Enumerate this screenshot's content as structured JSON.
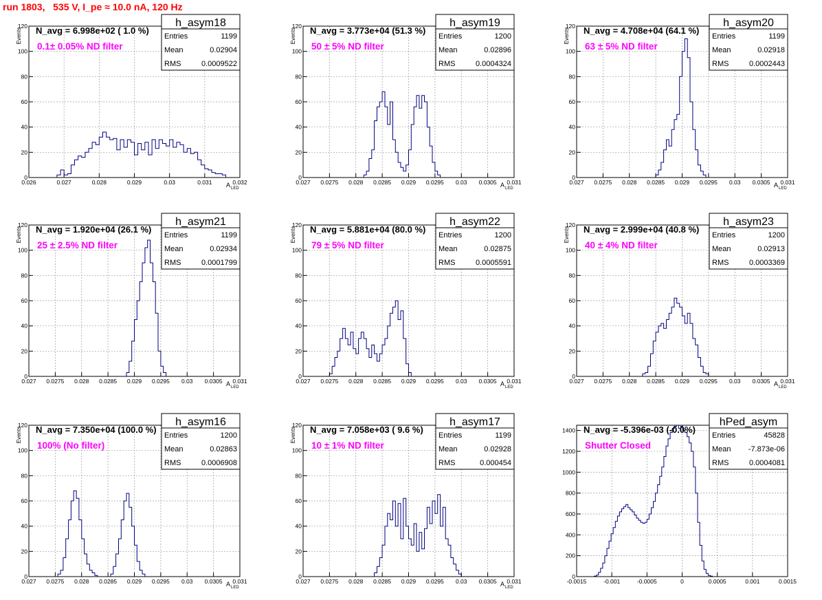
{
  "page": {
    "run_title": "run 1803,   535 V, I_pe ≈ 10.0 nA, 120 Hz",
    "colors": {
      "histogram": "#000080",
      "filter_label": "#ff00ff",
      "run_title": "#ff0000",
      "grid": "#9a9a9a"
    }
  },
  "chart_data": [
    {
      "type": "histogram",
      "name": "h_asym18",
      "navg": "N_avg = 6.998e+02 ( 1.0 %)",
      "filter": "0.1± 0.05% ND filter",
      "stats": {
        "entries": "1199",
        "mean": "0.02904",
        "rms": "0.0009522"
      },
      "xlabel": "A",
      "xlabel_sub": "LED",
      "ylabel": "Events",
      "xlim": [
        0.026,
        0.032
      ],
      "ylim": [
        0,
        120
      ],
      "xticks": [
        0.026,
        0.027,
        0.028,
        0.029,
        0.03,
        0.031,
        0.032
      ],
      "xtick_labels": [
        "0.026",
        "0.027",
        "0.028",
        "0.029",
        "0.03",
        "0.031",
        "0.032"
      ],
      "yticks": [
        0,
        20,
        40,
        60,
        80,
        100,
        120
      ],
      "bins": {
        "start": 0.0268,
        "width": 0.0001,
        "counts": [
          2,
          6,
          2,
          3,
          10,
          14,
          17,
          16,
          20,
          23,
          28,
          26,
          32,
          36,
          32,
          30,
          31,
          22,
          30,
          24,
          30,
          28,
          18,
          27,
          22,
          28,
          18,
          30,
          23,
          30,
          27,
          25,
          30,
          24,
          28,
          26,
          20,
          23,
          19,
          20,
          14,
          10,
          7,
          6,
          4,
          3,
          3,
          2
        ]
      }
    },
    {
      "type": "histogram",
      "name": "h_asym19",
      "navg": "N_avg = 3.773e+04 (51.3 %)",
      "filter": "50 ± 5% ND filter",
      "stats": {
        "entries": "1200",
        "mean": "0.02896",
        "rms": "0.0004324"
      },
      "xlabel": "A",
      "xlabel_sub": "LED",
      "ylabel": "Events",
      "xlim": [
        0.027,
        0.031
      ],
      "ylim": [
        0,
        120
      ],
      "xticks": [
        0.027,
        0.0275,
        0.028,
        0.0285,
        0.029,
        0.0295,
        0.03,
        0.0305,
        0.031
      ],
      "xtick_labels": [
        "0.027",
        "0.0275",
        "0.028",
        "0.0285",
        "0.029",
        "0.0295",
        "0.03",
        "0.0305",
        "0.031"
      ],
      "yticks": [
        0,
        20,
        40,
        60,
        80,
        100,
        120
      ],
      "bins": {
        "start": 0.02815,
        "width": 5e-05,
        "counts": [
          2,
          5,
          15,
          22,
          45,
          56,
          60,
          68,
          56,
          42,
          60,
          30,
          20,
          12,
          8,
          5,
          10,
          22,
          42,
          56,
          65,
          55,
          65,
          60,
          40,
          25,
          12,
          5,
          2
        ]
      }
    },
    {
      "type": "histogram",
      "name": "h_asym20",
      "navg": "N_avg = 4.708e+04 (64.1 %)",
      "filter": "63 ± 5% ND filter",
      "stats": {
        "entries": "1199",
        "mean": "0.02918",
        "rms": "0.0002443"
      },
      "xlabel": "A",
      "xlabel_sub": "LED",
      "ylabel": "Events",
      "xlim": [
        0.027,
        0.031
      ],
      "ylim": [
        0,
        120
      ],
      "xticks": [
        0.027,
        0.0275,
        0.028,
        0.0285,
        0.029,
        0.0295,
        0.03,
        0.0305,
        0.031
      ],
      "xtick_labels": [
        "0.027",
        "0.0275",
        "0.028",
        "0.0285",
        "0.029",
        "0.0295",
        "0.03",
        "0.0305",
        "0.031"
      ],
      "yticks": [
        0,
        20,
        40,
        60,
        80,
        100,
        120
      ],
      "bins": {
        "start": 0.0285,
        "width": 5e-05,
        "counts": [
          2,
          6,
          12,
          22,
          30,
          25,
          38,
          46,
          50,
          80,
          100,
          110,
          95,
          60,
          38,
          22,
          10,
          5,
          2
        ]
      }
    },
    {
      "type": "histogram",
      "name": "h_asym21",
      "navg": "N_avg = 1.920e+04 (26.1 %)",
      "filter": "25 ± 2.5% ND filter",
      "stats": {
        "entries": "1199",
        "mean": "0.02934",
        "rms": "0.0001799"
      },
      "xlabel": "A",
      "xlabel_sub": "LED",
      "ylabel": "Events",
      "xlim": [
        0.027,
        0.031
      ],
      "ylim": [
        0,
        120
      ],
      "xticks": [
        0.027,
        0.0275,
        0.028,
        0.0285,
        0.029,
        0.0295,
        0.03,
        0.0305,
        0.031
      ],
      "xtick_labels": [
        "0.027",
        "0.0275",
        "0.028",
        "0.0285",
        "0.029",
        "0.0295",
        "0.03",
        "0.0305",
        "0.031"
      ],
      "yticks": [
        0,
        20,
        40,
        60,
        80,
        100,
        120
      ],
      "bins": {
        "start": 0.02885,
        "width": 5e-05,
        "counts": [
          3,
          12,
          28,
          45,
          60,
          75,
          90,
          102,
          108,
          90,
          75,
          50,
          20,
          8,
          3
        ]
      }
    },
    {
      "type": "histogram",
      "name": "h_asym22",
      "navg": "N_avg = 5.881e+04 (80.0 %)",
      "filter": "79 ± 5% ND filter",
      "stats": {
        "entries": "1200",
        "mean": "0.02875",
        "rms": "0.0005591"
      },
      "xlabel": "A",
      "xlabel_sub": "LED",
      "ylabel": "Events",
      "xlim": [
        0.027,
        0.031
      ],
      "ylim": [
        0,
        120
      ],
      "xticks": [
        0.027,
        0.0275,
        0.028,
        0.0285,
        0.029,
        0.0295,
        0.03,
        0.0305,
        0.031
      ],
      "xtick_labels": [
        "0.027",
        "0.0275",
        "0.028",
        "0.0285",
        "0.029",
        "0.0295",
        "0.03",
        "0.0305",
        "0.031"
      ],
      "yticks": [
        0,
        20,
        40,
        60,
        80,
        100,
        120
      ],
      "bins": {
        "start": 0.0275,
        "width": 5e-05,
        "counts": [
          2,
          8,
          15,
          20,
          30,
          38,
          30,
          25,
          35,
          22,
          18,
          30,
          35,
          30,
          22,
          15,
          25,
          18,
          12,
          18,
          25,
          30,
          40,
          50,
          55,
          60,
          45,
          52,
          30,
          10,
          3
        ]
      }
    },
    {
      "type": "histogram",
      "name": "h_asym23",
      "navg": "N_avg = 2.999e+04 (40.8 %)",
      "filter": "40 ± 4% ND filter",
      "stats": {
        "entries": "1200",
        "mean": "0.02913",
        "rms": "0.0003369"
      },
      "xlabel": "A",
      "xlabel_sub": "LED",
      "ylabel": "Events",
      "xlim": [
        0.027,
        0.031
      ],
      "ylim": [
        0,
        120
      ],
      "xticks": [
        0.027,
        0.0275,
        0.028,
        0.0285,
        0.029,
        0.0295,
        0.03,
        0.0305,
        0.031
      ],
      "xtick_labels": [
        "0.027",
        "0.0275",
        "0.028",
        "0.0285",
        "0.029",
        "0.0295",
        "0.03",
        "0.0305",
        "0.031"
      ],
      "yticks": [
        0,
        20,
        40,
        60,
        80,
        100,
        120
      ],
      "bins": {
        "start": 0.02825,
        "width": 5e-05,
        "counts": [
          2,
          3,
          8,
          18,
          28,
          35,
          40,
          42,
          38,
          45,
          50,
          55,
          62,
          58,
          55,
          48,
          42,
          50,
          42,
          30,
          25,
          15,
          8,
          3,
          2
        ]
      }
    },
    {
      "type": "histogram",
      "name": "h_asym16",
      "navg": "N_avg = 7.350e+04 (100.0 %)",
      "filter": "100% (No filter)",
      "stats": {
        "entries": "1200",
        "mean": "0.02863",
        "rms": "0.0006908"
      },
      "xlabel": "A",
      "xlabel_sub": "LED",
      "ylabel": "Events",
      "xlim": [
        0.027,
        0.031
      ],
      "ylim": [
        0,
        120
      ],
      "xticks": [
        0.027,
        0.0275,
        0.028,
        0.0285,
        0.029,
        0.0295,
        0.03,
        0.0305,
        0.031
      ],
      "xtick_labels": [
        "0.027",
        "0.0275",
        "0.028",
        "0.0285",
        "0.029",
        "0.0295",
        "0.03",
        "0.0305",
        "0.031"
      ],
      "yticks": [
        0,
        20,
        40,
        60,
        80,
        100,
        120
      ],
      "bins": {
        "start": 0.02755,
        "width": 5e-05,
        "counts": [
          2,
          5,
          15,
          30,
          45,
          60,
          68,
          62,
          45,
          30,
          18,
          10,
          5,
          3,
          1,
          0,
          0,
          0,
          0,
          0,
          2,
          8,
          18,
          30,
          45,
          60,
          66,
          55,
          40,
          25,
          12,
          5,
          2
        ]
      }
    },
    {
      "type": "histogram",
      "name": "h_asym17",
      "navg": "N_avg = 7.058e+03 ( 9.6 %)",
      "filter": "10 ± 1% ND filter",
      "stats": {
        "entries": "1199",
        "mean": "0.02928",
        "rms": "0.000454"
      },
      "xlabel": "A",
      "xlabel_sub": "LED",
      "ylabel": "Events",
      "xlim": [
        0.027,
        0.031
      ],
      "ylim": [
        0,
        120
      ],
      "xticks": [
        0.027,
        0.0275,
        0.028,
        0.0285,
        0.029,
        0.0295,
        0.03,
        0.0305,
        0.031
      ],
      "xtick_labels": [
        "0.027",
        "0.0275",
        "0.028",
        "0.0285",
        "0.029",
        "0.0295",
        "0.03",
        "0.0305",
        "0.031"
      ],
      "yticks": [
        0,
        20,
        40,
        60,
        80,
        100,
        120
      ],
      "bins": {
        "start": 0.02835,
        "width": 5e-05,
        "counts": [
          3,
          8,
          15,
          25,
          40,
          50,
          45,
          60,
          40,
          58,
          30,
          62,
          40,
          30,
          25,
          42,
          20,
          35,
          22,
          38,
          55,
          42,
          60,
          50,
          65,
          40,
          55,
          30,
          25,
          15,
          10,
          5,
          2
        ]
      }
    },
    {
      "type": "histogram",
      "name": "hPed_asym",
      "navg": "N_avg = -5.396e-03 (-0.0%)",
      "filter": "Shutter Closed",
      "stats": {
        "entries": "45828",
        "mean": "-7.873e-06",
        "rms": "0.0004081"
      },
      "xlabel": "",
      "xlabel_sub": "",
      "ylabel": "",
      "xlim": [
        -0.0015,
        0.0015
      ],
      "ylim": [
        0,
        1450
      ],
      "xticks": [
        -0.0015,
        -0.001,
        -0.0005,
        0,
        0.0005,
        0.001,
        0.0015
      ],
      "xtick_labels": [
        "-0.0015",
        "-0.001",
        "-0.0005",
        "0",
        "0.0005",
        "0.001",
        "0.0015"
      ],
      "yticks": [
        0,
        200,
        400,
        600,
        800,
        1000,
        1200,
        1400
      ],
      "bins": {
        "start": -0.00125,
        "width": 3e-05,
        "counts": [
          5,
          15,
          40,
          80,
          130,
          200,
          270,
          340,
          410,
          470,
          530,
          580,
          620,
          650,
          670,
          690,
          660,
          640,
          620,
          590,
          560,
          540,
          520,
          510,
          520,
          550,
          600,
          660,
          720,
          800,
          880,
          960,
          1050,
          1150,
          1250,
          1320,
          1380,
          1420,
          1440,
          1450,
          1420,
          1440,
          1400,
          1380,
          1340,
          1280,
          1200,
          1050,
          800,
          520,
          300,
          150,
          70,
          30,
          12,
          5
        ]
      }
    }
  ]
}
